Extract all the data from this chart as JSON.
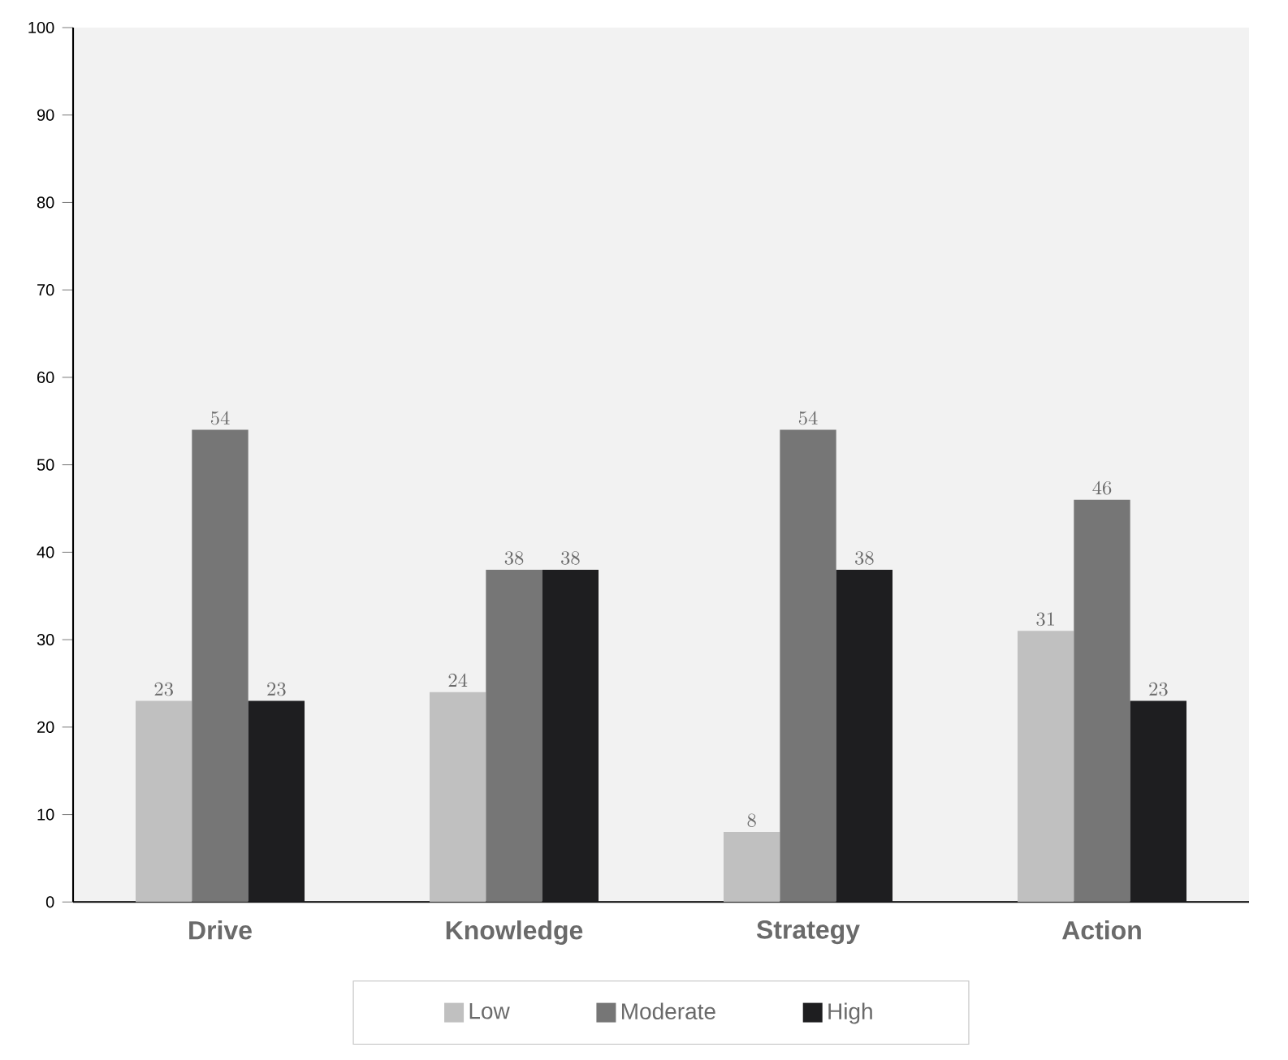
{
  "chart_data": {
    "type": "bar",
    "categories": [
      "Drive",
      "Knowledge",
      "Strategy",
      "Action"
    ],
    "series": [
      {
        "name": "Low",
        "color": "#c0c0c0",
        "values": [
          23,
          24,
          8,
          31
        ]
      },
      {
        "name": "Moderate",
        "color": "#767676",
        "values": [
          54,
          38,
          54,
          46
        ]
      },
      {
        "name": "High",
        "color": "#1e1e20",
        "values": [
          23,
          38,
          38,
          23
        ]
      }
    ],
    "ylim": [
      0,
      100
    ],
    "yticks": [
      0,
      10,
      20,
      30,
      40,
      50,
      60,
      70,
      80,
      90,
      100
    ],
    "data_labels": true,
    "legend": "bottom",
    "grid": false
  }
}
